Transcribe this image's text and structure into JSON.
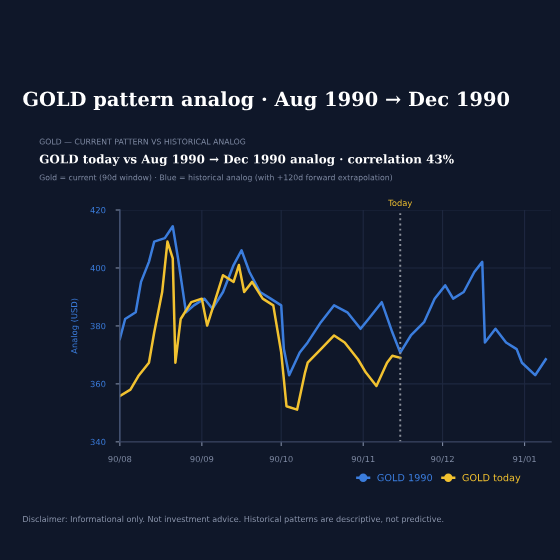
{
  "chart_data": {
    "type": "line",
    "title": "GOLD pattern analog · Aug 1990 → Dec 1990",
    "subtitle": "GOLD today vs Aug 1990 → Dec 1990 analog · correlation 43%",
    "ylabel": "Analog (USD)",
    "annotations": [
      "GOLD — CURRENT PATTERN VS HISTORICAL ANALOG",
      "Gold = current (90d window) · Blue = historical analog (with +120d forward extrapolation)",
      "Disclaimer: Informational only. Not investment advice. Historical patterns are descriptive, not predictive."
    ],
    "series": [
      {
        "name": "GOLD 1990",
        "color": "#3b7ddd",
        "x": [
          "1990-08-01",
          "1990-08-03",
          "1990-08-07",
          "1990-08-09",
          "1990-08-12",
          "1990-08-14",
          "1990-08-18",
          "1990-08-21",
          "1990-08-23",
          "1990-08-26",
          "1990-08-29",
          "1990-09-02",
          "1990-09-05",
          "1990-09-09",
          "1990-09-13",
          "1990-09-16",
          "1990-09-19",
          "1990-09-23",
          "1990-09-27",
          "1990-10-01",
          "1990-10-02",
          "1990-10-04",
          "1990-10-08",
          "1990-10-11",
          "1990-10-16",
          "1990-10-21",
          "1990-10-26",
          "1990-10-31",
          "1990-11-03",
          "1990-11-08",
          "1990-11-12",
          "1990-11-15",
          "1990-11-19",
          "1990-11-24",
          "1990-11-28",
          "1990-12-02",
          "1990-12-05",
          "1990-12-09",
          "1990-12-13",
          "1990-12-16",
          "1990-12-17",
          "1990-12-21",
          "1990-12-25",
          "1990-12-29",
          "1990-12-31",
          "1991-01-05",
          "1991-01-09"
        ],
        "values": [
          375.5,
          382.4,
          384.7,
          395.2,
          402.1,
          409.1,
          410.3,
          414.4,
          403.3,
          384.7,
          387.1,
          389.4,
          385.9,
          391.7,
          401,
          406.1,
          398.6,
          391.7,
          389.4,
          387.1,
          372,
          363,
          370.8,
          374.3,
          381.3,
          387.1,
          384.7,
          379,
          382.4,
          388.2,
          377.8,
          370.8,
          376.7,
          381.3,
          389.4,
          394,
          389.4,
          391.7,
          398.6,
          402.1,
          374.3,
          379,
          374.3,
          372,
          367.3,
          363,
          368.5
        ]
      },
      {
        "name": "GOLD today",
        "color": "#f2c230",
        "x": [
          "1990-08-01",
          "1990-08-05",
          "1990-08-08",
          "1990-08-12",
          "1990-08-14",
          "1990-08-17",
          "1990-08-19",
          "1990-08-21",
          "1990-08-22",
          "1990-08-24",
          "1990-08-28",
          "1990-09-01",
          "1990-09-03",
          "1990-09-05",
          "1990-09-09",
          "1990-09-13",
          "1990-09-15",
          "1990-09-17",
          "1990-09-20",
          "1990-09-24",
          "1990-09-28",
          "1990-10-01",
          "1990-10-03",
          "1990-10-07",
          "1990-10-10",
          "1990-10-11",
          "1990-10-16",
          "1990-10-21",
          "1990-10-25",
          "1990-10-30",
          "1990-11-02",
          "1990-11-06",
          "1990-11-10",
          "1990-11-12",
          "1990-11-15"
        ],
        "values": [
          355.8,
          358,
          362.7,
          367.3,
          377.8,
          391.7,
          409.1,
          403.3,
          367.3,
          382.4,
          388.2,
          389.4,
          380.1,
          385.9,
          397.5,
          395.2,
          401,
          391.7,
          395.2,
          389.4,
          387.1,
          370.8,
          352.3,
          351.1,
          363.9,
          367.3,
          372,
          376.7,
          374.3,
          368.5,
          363.9,
          359.3,
          367.3,
          369.7,
          369
        ]
      }
    ],
    "xlim": [
      "1990-08-01",
      "1991-01-11"
    ],
    "xticks": [
      {
        "value": "1990-08-01",
        "label": "90/08"
      },
      {
        "value": "1990-09-01",
        "label": "90/09"
      },
      {
        "value": "1990-10-01",
        "label": "90/10"
      },
      {
        "value": "1990-11-01",
        "label": "90/11"
      },
      {
        "value": "1990-12-01",
        "label": "90/12"
      },
      {
        "value": "1991-01-01",
        "label": "91/01"
      }
    ],
    "ylim": [
      340,
      420
    ],
    "yticks": [
      340,
      360,
      380,
      400,
      420
    ],
    "ref_lines": [
      {
        "axis": "x",
        "value": "1990-11-15",
        "label": "Today",
        "color": "#8a8f99",
        "line_style": "dotted"
      }
    ],
    "grid": true,
    "legend": "bottom right",
    "line_style": "solid"
  }
}
